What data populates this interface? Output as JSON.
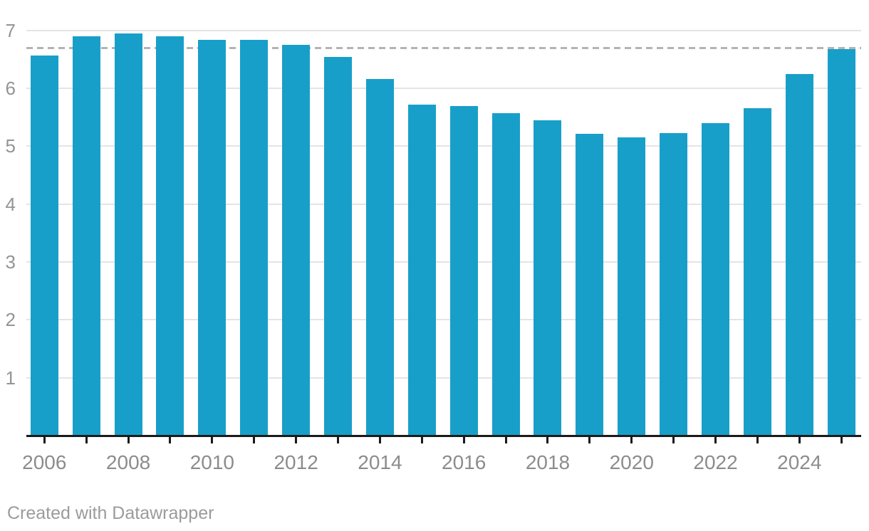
{
  "chart_data": {
    "type": "bar",
    "title": "",
    "xlabel": "",
    "ylabel": "",
    "categories": [
      "2006",
      "2007",
      "2008",
      "2009",
      "2010",
      "2011",
      "2012",
      "2013",
      "2014",
      "2015",
      "2016",
      "2017",
      "2018",
      "2019",
      "2020",
      "2021",
      "2022",
      "2023",
      "2024",
      "2025"
    ],
    "values": [
      6.57,
      6.89,
      6.94,
      6.9,
      6.83,
      6.84,
      6.75,
      6.54,
      6.16,
      5.72,
      5.69,
      5.57,
      5.45,
      5.21,
      5.15,
      5.22,
      5.4,
      5.66,
      6.25,
      6.67
    ],
    "y_ticks": [
      1,
      2,
      3,
      4,
      5,
      6,
      7
    ],
    "x_axis_labels": [
      "2006",
      "2008",
      "2010",
      "2012",
      "2014",
      "2016",
      "2018",
      "2020",
      "2022",
      "2024"
    ],
    "ylim": [
      0,
      7.3
    ],
    "grid": "horizontal",
    "legend": "none",
    "reference_line": {
      "value": 6.7,
      "style": "dashed"
    },
    "colors": {
      "bar": "#189fc9",
      "grid": "#e4e4e4",
      "dashed_line": "#b3b3b3",
      "axis": "#1a1a1a",
      "y_label": "#949494",
      "x_label": "#8c8c8c",
      "credit": "#9b9b9b"
    }
  },
  "footer": {
    "credit_label": "Created with Datawrapper"
  }
}
